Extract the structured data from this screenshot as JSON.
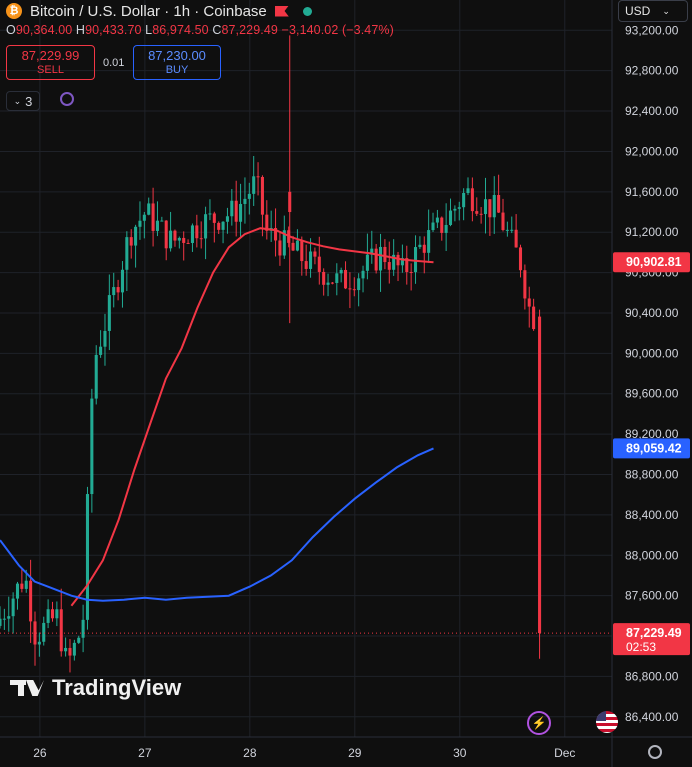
{
  "header": {
    "symbol_icon": "bitcoin-icon",
    "title": "Bitcoin / U.S. Dollar · 1h · Coinbase",
    "flag_icon": "flag-icon",
    "status": "market-open-dot"
  },
  "ohlc": {
    "o_label": "O",
    "o_value": "90,364.00",
    "h_label": "H",
    "h_value": "90,433.70",
    "l_label": "L",
    "l_value": "86,974.50",
    "c_label": "C",
    "c_value": "87,229.49",
    "change": "−3,140.02 (−3.47%)"
  },
  "trade": {
    "sell_price": "87,229.99",
    "sell_label": "SELL",
    "spread": "0.01",
    "buy_price": "87,230.00",
    "buy_label": "BUY"
  },
  "indicators": {
    "count": "3",
    "toggle_icon": "chevron-down-icon",
    "extra_icon": "loop-icon"
  },
  "currency": {
    "label": "USD",
    "icon": "chevron-down-icon"
  },
  "branding": {
    "name": "TradingView"
  },
  "bottom_icons": [
    "bolt-icon",
    "flag-us-icon",
    "settings-icon"
  ],
  "colors": {
    "up": "#22ab94",
    "down": "#f23645",
    "ma_fast": "#f23645",
    "ma_slow": "#2962ff",
    "background": "#0f0f0f"
  },
  "chart_data": {
    "type": "candlestick",
    "title": "Bitcoin / U.S. Dollar · 1h · Coinbase",
    "y_ticks": [
      86400,
      86800,
      87200,
      87600,
      88000,
      88400,
      88800,
      89200,
      89600,
      90000,
      90400,
      90800,
      91200,
      91600,
      92000,
      92400,
      92800,
      93200
    ],
    "y_tick_labels": [
      "86,400.00",
      "86,800.00",
      "87,200.00",
      "87,600.00",
      "88,000.00",
      "88,400.00",
      "88,800.00",
      "89,200.00",
      "89,600.00",
      "90,000.00",
      "90,400.00",
      "90,800.00",
      "91,200.00",
      "91,600.00",
      "92,000.00",
      "92,400.00",
      "92,800.00",
      "93,200.00"
    ],
    "ylim": [
      86200,
      93500
    ],
    "x_labels": [
      {
        "label": "26",
        "day": 26
      },
      {
        "label": "27",
        "day": 27
      },
      {
        "label": "28",
        "day": 28
      },
      {
        "label": "29",
        "day": 29
      },
      {
        "label": "30",
        "day": 30
      },
      {
        "label": "Dec",
        "day": 31
      }
    ],
    "xlim_days": [
      25.62,
      31.45
    ],
    "price_labels": [
      {
        "name": "MA fast",
        "value": 90902.81,
        "text": "90,902.81",
        "color": "#f23645"
      },
      {
        "name": "MA slow",
        "value": 89059.42,
        "text": "89,059.42",
        "color": "#2962ff"
      },
      {
        "name": "Last price",
        "value": 87229.49,
        "text": "87,229.49",
        "sub": "02:53",
        "color": "#f23645"
      }
    ],
    "ma_fast": [
      [
        26.3,
        87500
      ],
      [
        26.45,
        87700
      ],
      [
        26.6,
        87950
      ],
      [
        26.75,
        88350
      ],
      [
        26.9,
        88850
      ],
      [
        27.05,
        89300
      ],
      [
        27.2,
        89750
      ],
      [
        27.35,
        90050
      ],
      [
        27.5,
        90450
      ],
      [
        27.65,
        90800
      ],
      [
        27.8,
        91050
      ],
      [
        27.95,
        91180
      ],
      [
        28.1,
        91240
      ],
      [
        28.25,
        91220
      ],
      [
        28.4,
        91150
      ],
      [
        28.55,
        91100
      ],
      [
        28.7,
        91060
      ],
      [
        28.85,
        91030
      ],
      [
        29.0,
        91010
      ],
      [
        29.15,
        90990
      ],
      [
        29.3,
        90960
      ],
      [
        29.45,
        90930
      ],
      [
        29.6,
        90915
      ],
      [
        29.75,
        90903
      ]
    ],
    "ma_slow": [
      [
        25.62,
        88150
      ],
      [
        25.8,
        87900
      ],
      [
        25.95,
        87740
      ],
      [
        26.1,
        87680
      ],
      [
        26.3,
        87600
      ],
      [
        26.45,
        87560
      ],
      [
        26.6,
        87550
      ],
      [
        26.8,
        87560
      ],
      [
        27.0,
        87580
      ],
      [
        27.2,
        87560
      ],
      [
        27.4,
        87580
      ],
      [
        27.6,
        87590
      ],
      [
        27.8,
        87600
      ],
      [
        28.0,
        87690
      ],
      [
        28.2,
        87800
      ],
      [
        28.4,
        87950
      ],
      [
        28.6,
        88180
      ],
      [
        28.8,
        88380
      ],
      [
        29.0,
        88560
      ],
      [
        29.2,
        88720
      ],
      [
        29.4,
        88870
      ],
      [
        29.6,
        88990
      ],
      [
        29.75,
        89059
      ]
    ],
    "candles_summary": {
      "open_first": 87800,
      "session_high": 93150,
      "session_low": 86450,
      "last_open": 90364.0,
      "last_high": 90433.7,
      "last_low": 86974.5,
      "last_close": 87229.49
    }
  }
}
